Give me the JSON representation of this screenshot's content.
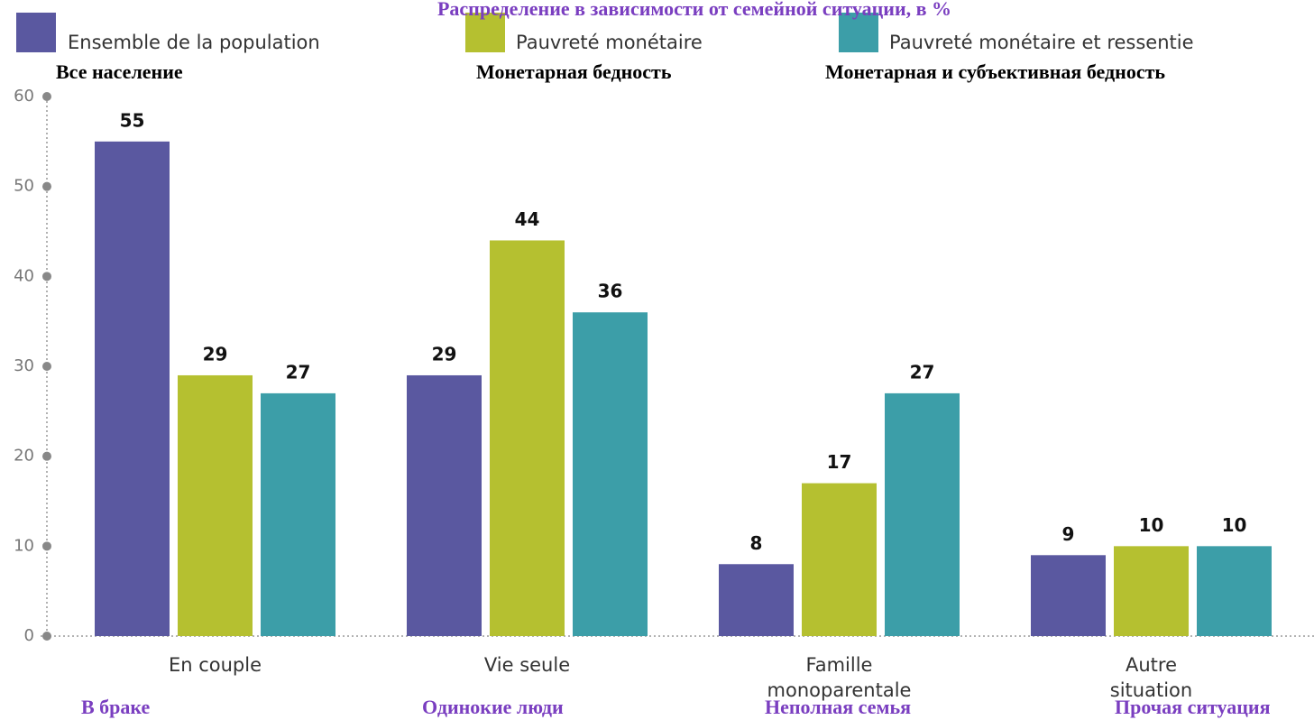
{
  "chart_data": {
    "type": "bar",
    "title": "Распределение в зависимости от семейной ситуации, в %",
    "categories": [
      [
        "En couple"
      ],
      [
        "Vie seule"
      ],
      [
        "Famille",
        "monoparentale"
      ],
      [
        "Autre",
        "situation"
      ]
    ],
    "category_translations": [
      "В браке",
      "Одинокие люди",
      "Неполная семья",
      "Прочая ситуация"
    ],
    "series": [
      {
        "name": "Ensemble de la population",
        "translation": "Все население",
        "color": "#5a58a0",
        "values": [
          55,
          29,
          8,
          9
        ]
      },
      {
        "name": "Pauvreté monétaire",
        "translation": "Монетарная бедность",
        "color": "#b5c030",
        "values": [
          29,
          44,
          17,
          10
        ]
      },
      {
        "name": "Pauvreté monétaire et ressentie",
        "translation": "Монетарная и субъективная бедность",
        "color": "#3c9ea8",
        "values": [
          27,
          36,
          27,
          10
        ]
      }
    ],
    "ylim": [
      0,
      60
    ],
    "yticks": [
      0,
      10,
      20,
      30,
      40,
      50,
      60
    ]
  }
}
